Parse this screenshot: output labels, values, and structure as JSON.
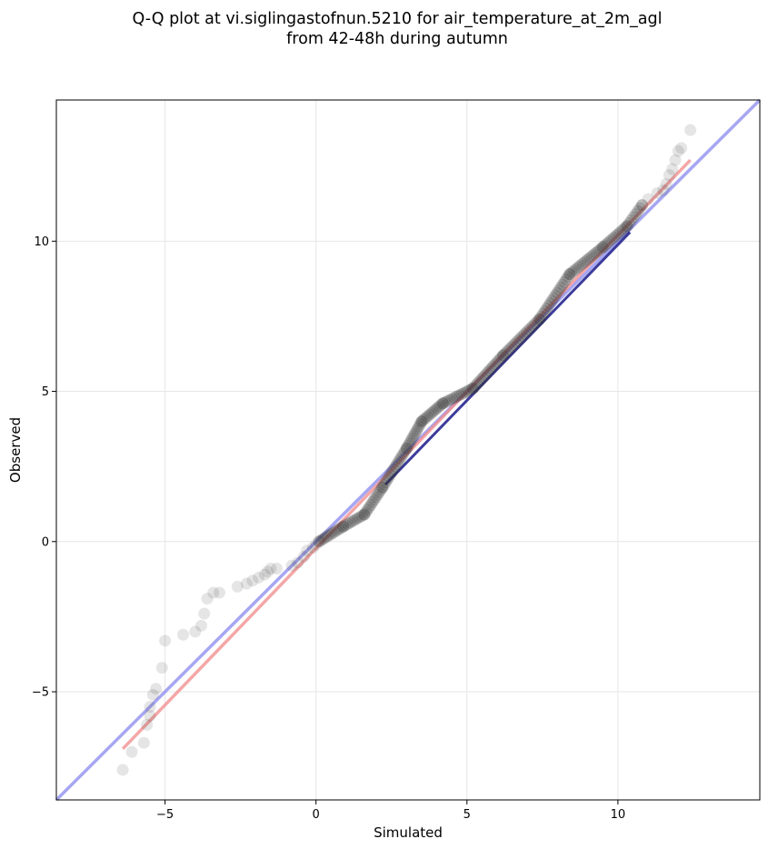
{
  "chart_data": {
    "type": "scatter",
    "title_line1": "Q-Q plot at vi.siglingastofnun.5210 for air_temperature_at_2m_agl",
    "title_line2": "from 42-48h during autumn",
    "xlabel": "Simulated",
    "ylabel": "Observed",
    "xlim": [
      -8.6,
      14.7
    ],
    "ylim": [
      -8.6,
      14.7
    ],
    "xticks": [
      -5,
      0,
      5,
      10
    ],
    "yticks": [
      -5,
      0,
      5,
      10
    ],
    "xtick_labels": [
      "−5",
      "0",
      "5",
      "10"
    ],
    "ytick_labels": [
      "−5",
      "0",
      "5",
      "10"
    ],
    "grid": true,
    "colors": {
      "points": "#333333",
      "identity_line": "#8888ee",
      "fit_line": "#f08a8a",
      "central_line": "#1a1a8a"
    },
    "identity_line": {
      "x": [
        -8.6,
        14.7
      ],
      "y": [
        -8.6,
        14.7
      ]
    },
    "fit_line": {
      "x": [
        -6.4,
        12.4
      ],
      "y": [
        -6.9,
        12.7
      ]
    },
    "central_line": {
      "x": [
        2.3,
        10.4
      ],
      "y": [
        1.9,
        10.3
      ]
    },
    "tail_points": [
      [
        -6.4,
        -7.6
      ],
      [
        -6.1,
        -7.0
      ],
      [
        -5.7,
        -6.7
      ],
      [
        -5.6,
        -6.1
      ],
      [
        -5.5,
        -5.8
      ],
      [
        -5.5,
        -5.5
      ],
      [
        -5.4,
        -5.1
      ],
      [
        -5.3,
        -4.9
      ],
      [
        -5.1,
        -4.2
      ],
      [
        -5.0,
        -3.3
      ],
      [
        -4.4,
        -3.1
      ],
      [
        -4.0,
        -3.0
      ],
      [
        -3.8,
        -2.8
      ],
      [
        -3.7,
        -2.4
      ],
      [
        -3.6,
        -1.9
      ],
      [
        -3.4,
        -1.7
      ],
      [
        -3.2,
        -1.7
      ],
      [
        -2.6,
        -1.5
      ],
      [
        -2.3,
        -1.4
      ],
      [
        -2.1,
        -1.3
      ],
      [
        -1.9,
        -1.2
      ],
      [
        -1.7,
        -1.1
      ],
      [
        -1.6,
        -1.0
      ],
      [
        -1.5,
        -0.9
      ],
      [
        -1.3,
        -0.9
      ],
      [
        -0.8,
        -0.8
      ],
      [
        -0.6,
        -0.7
      ],
      [
        -0.4,
        -0.5
      ],
      [
        -0.3,
        -0.3
      ],
      [
        -0.1,
        -0.2
      ],
      [
        0.0,
        -0.1
      ],
      [
        0.1,
        0.0
      ],
      [
        10.8,
        11.2
      ],
      [
        11.0,
        11.4
      ],
      [
        11.3,
        11.6
      ],
      [
        11.5,
        11.7
      ],
      [
        11.6,
        11.9
      ],
      [
        11.7,
        12.2
      ],
      [
        11.8,
        12.4
      ],
      [
        11.9,
        12.7
      ],
      [
        12.0,
        13.0
      ],
      [
        12.1,
        13.1
      ],
      [
        12.4,
        13.7
      ]
    ],
    "dense_segments": [
      [
        0.1,
        0.0,
        0.9,
        0.5,
        12
      ],
      [
        0.9,
        0.5,
        1.6,
        0.9,
        10
      ],
      [
        1.6,
        0.9,
        2.2,
        1.8,
        12
      ],
      [
        2.2,
        1.8,
        3.0,
        3.1,
        16
      ],
      [
        3.0,
        3.1,
        3.5,
        4.0,
        12
      ],
      [
        3.5,
        4.0,
        4.2,
        4.6,
        12
      ],
      [
        4.2,
        4.6,
        5.2,
        5.1,
        14
      ],
      [
        5.2,
        5.1,
        6.2,
        6.2,
        16
      ],
      [
        6.2,
        6.2,
        7.4,
        7.4,
        18
      ],
      [
        7.4,
        7.4,
        8.4,
        8.9,
        18
      ],
      [
        8.4,
        8.9,
        9.5,
        9.8,
        16
      ],
      [
        9.5,
        9.8,
        10.3,
        10.5,
        12
      ],
      [
        10.3,
        10.5,
        10.8,
        11.2,
        8
      ]
    ]
  }
}
